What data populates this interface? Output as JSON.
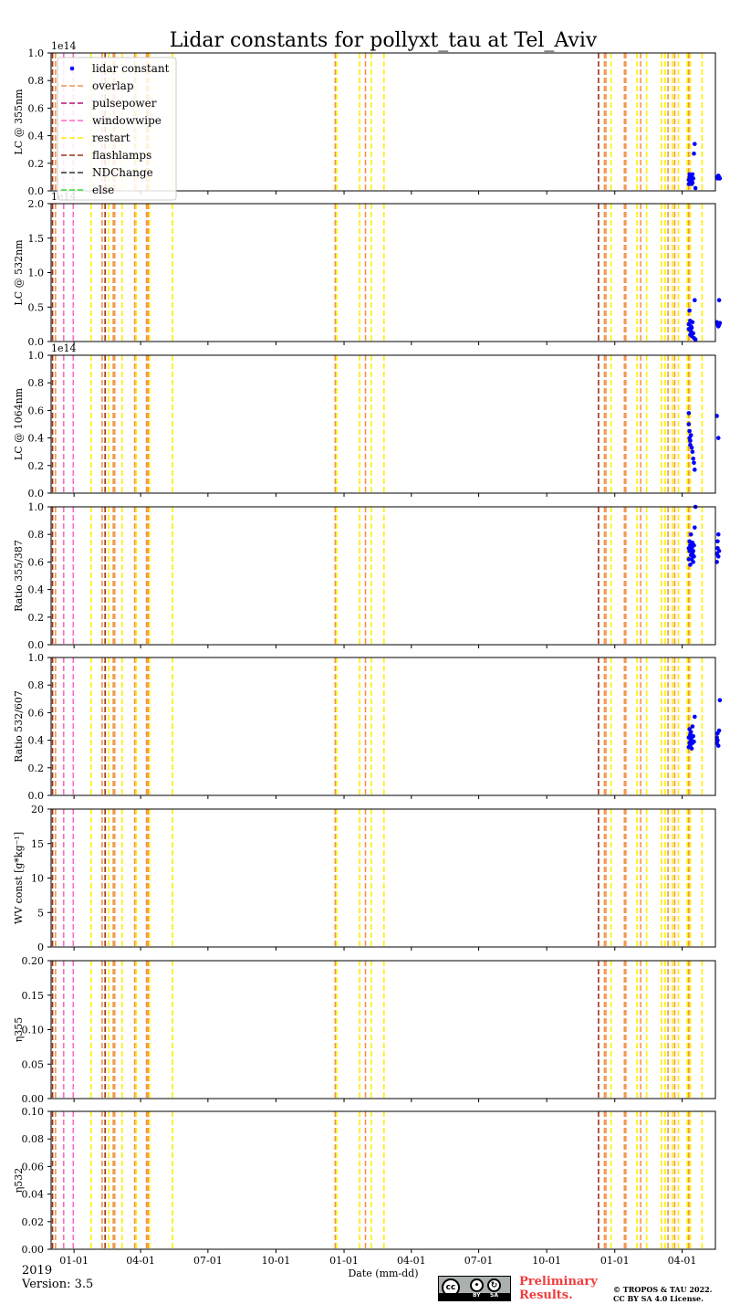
{
  "chart_data": {
    "type": "scatter",
    "title": "Lidar constants for pollyxt_tau at Tel_Aviv",
    "xlabel": "Date (mm-dd)",
    "x_tick_labels": [
      "01-01",
      "04-01",
      "07-01",
      "10-01",
      "01-01",
      "04-01",
      "07-01",
      "10-01",
      "01-01",
      "04-01"
    ],
    "x_tick_days": [
      31,
      121,
      212,
      304,
      396,
      487,
      578,
      670,
      762,
      853
    ],
    "xlim_days": [
      0,
      898
    ],
    "legend": {
      "placement": "upper-left of first panel",
      "entries": [
        {
          "label": "lidar constant",
          "style": "dot",
          "color": "#0000ff"
        },
        {
          "label": "overlap",
          "style": "dash",
          "color": "#f4944c"
        },
        {
          "label": "pulsepower",
          "style": "dash",
          "color": "#b0127a"
        },
        {
          "label": "windowwipe",
          "style": "dash",
          "color": "#ff66cc"
        },
        {
          "label": "restart",
          "style": "dash",
          "color": "#ffee00"
        },
        {
          "label": "flashlamps",
          "style": "dash",
          "color": "#a0341a"
        },
        {
          "label": "NDChange",
          "style": "dash",
          "color": "#333333"
        },
        {
          "label": "else",
          "style": "dash",
          "color": "#33dd33"
        }
      ]
    },
    "events": [
      {
        "type": "flashlamps",
        "day": 2
      },
      {
        "type": "overlap",
        "day": 6
      },
      {
        "type": "windowwipe",
        "day": 17
      },
      {
        "type": "windowwipe",
        "day": 30
      },
      {
        "type": "restart",
        "day": 54
      },
      {
        "type": "overlap",
        "day": 69
      },
      {
        "type": "flashlamps",
        "day": 73
      },
      {
        "type": "restart",
        "day": 78
      },
      {
        "type": "overlap",
        "day": 84
      },
      {
        "type": "overlap",
        "day": 86
      },
      {
        "type": "restart",
        "day": 96
      },
      {
        "type": "overlap",
        "day": 113
      },
      {
        "type": "restart",
        "day": 115
      },
      {
        "type": "overlap",
        "day": 129
      },
      {
        "type": "overlap",
        "day": 131
      },
      {
        "type": "restart",
        "day": 133
      },
      {
        "type": "restart",
        "day": 164
      },
      {
        "type": "overlap",
        "day": 384
      },
      {
        "type": "restart",
        "day": 386
      },
      {
        "type": "restart",
        "day": 417
      },
      {
        "type": "overlap",
        "day": 425
      },
      {
        "type": "restart",
        "day": 433
      },
      {
        "type": "restart",
        "day": 450
      },
      {
        "type": "flashlamps",
        "day": 740
      },
      {
        "type": "overlap",
        "day": 748
      },
      {
        "type": "overlap",
        "day": 750
      },
      {
        "type": "restart",
        "day": 757
      },
      {
        "type": "overlap",
        "day": 775
      },
      {
        "type": "overlap",
        "day": 777
      },
      {
        "type": "restart",
        "day": 792
      },
      {
        "type": "overlap",
        "day": 797
      },
      {
        "type": "restart",
        "day": 805
      },
      {
        "type": "restart",
        "day": 825
      },
      {
        "type": "restart",
        "day": 830
      },
      {
        "type": "overlap",
        "day": 834
      },
      {
        "type": "restart",
        "day": 840
      },
      {
        "type": "overlap",
        "day": 843
      },
      {
        "type": "restart",
        "day": 848
      },
      {
        "type": "restart",
        "day": 860
      },
      {
        "type": "overlap",
        "day": 862
      },
      {
        "type": "restart",
        "day": 864
      },
      {
        "type": "restart",
        "day": 880
      }
    ],
    "panels": [
      {
        "ylabel": "LC @ 355nm",
        "ylim": [
          0,
          1.0
        ],
        "yticks": [
          "0.0",
          "0.2",
          "0.4",
          "0.6",
          "0.8",
          "1.0"
        ],
        "offset_text": "1e14",
        "points": {
          "x": [
            862,
            862,
            863,
            863,
            864,
            864,
            865,
            865,
            866,
            866,
            866,
            867,
            867,
            868,
            869,
            870,
            871,
            900,
            901,
            902,
            903,
            904
          ],
          "y": [
            0.05,
            0.08,
            0.1,
            0.12,
            0.06,
            0.09,
            0.11,
            0.07,
            0.05,
            0.1,
            0.08,
            0.12,
            0.06,
            0.09,
            0.27,
            0.34,
            0.02,
            0.1,
            0.09,
            0.11,
            0.1,
            0.09
          ]
        }
      },
      {
        "ylabel": "LC @ 532nm",
        "ylim": [
          0,
          2.0
        ],
        "yticks": [
          "0.0",
          "0.5",
          "1.0",
          "1.5",
          "2.0"
        ],
        "offset_text": "1e14",
        "points": {
          "x": [
            862,
            862,
            863,
            864,
            864,
            865,
            865,
            866,
            866,
            867,
            868,
            869,
            870,
            871,
            900,
            901,
            902,
            903,
            904,
            903
          ],
          "y": [
            0.18,
            0.25,
            0.45,
            0.1,
            0.3,
            0.22,
            0.15,
            0.2,
            0.08,
            0.28,
            0.12,
            0.05,
            0.6,
            0.03,
            0.28,
            0.25,
            0.22,
            0.24,
            0.27,
            0.6
          ]
        }
      },
      {
        "ylabel": "LC @ 1064nm",
        "ylim": [
          0,
          1.0
        ],
        "yticks": [
          "0.0",
          "0.2",
          "0.4",
          "0.6",
          "0.8",
          "1.0"
        ],
        "offset_text": "1e14",
        "points": {
          "x": [
            862,
            862,
            863,
            863,
            864,
            864,
            865,
            866,
            867,
            868,
            869,
            870,
            900,
            902
          ],
          "y": [
            0.58,
            0.5,
            0.45,
            0.4,
            0.38,
            0.35,
            0.42,
            0.33,
            0.3,
            0.25,
            0.22,
            0.17,
            0.56,
            0.4
          ]
        }
      },
      {
        "ylabel": "Ratio 355/387",
        "ylim": [
          0,
          1.0
        ],
        "yticks": [
          "0.0",
          "0.2",
          "0.4",
          "0.6",
          "0.8",
          "1.0"
        ],
        "offset_text": "",
        "points": {
          "x": [
            862,
            862,
            863,
            863,
            864,
            864,
            865,
            865,
            866,
            866,
            867,
            867,
            868,
            868,
            869,
            869,
            870,
            871,
            900,
            900,
            901,
            901,
            902,
            902,
            903
          ],
          "y": [
            0.62,
            0.7,
            0.75,
            0.68,
            0.58,
            0.72,
            0.65,
            0.8,
            0.62,
            0.7,
            0.66,
            0.74,
            0.6,
            0.68,
            0.72,
            0.64,
            0.85,
            1.0,
            0.6,
            0.66,
            0.7,
            0.75,
            0.8,
            0.64,
            0.68
          ]
        }
      },
      {
        "ylabel": "Ratio 532/607",
        "ylim": [
          0,
          1.0
        ],
        "yticks": [
          "0.0",
          "0.2",
          "0.4",
          "0.6",
          "0.8",
          "1.0"
        ],
        "offset_text": "",
        "points": {
          "x": [
            862,
            862,
            863,
            863,
            864,
            864,
            865,
            865,
            866,
            866,
            867,
            867,
            868,
            869,
            870,
            900,
            900,
            901,
            901,
            902,
            903,
            904
          ],
          "y": [
            0.35,
            0.42,
            0.48,
            0.38,
            0.44,
            0.36,
            0.4,
            0.46,
            0.34,
            0.42,
            0.38,
            0.5,
            0.43,
            0.39,
            0.57,
            0.38,
            0.42,
            0.4,
            0.45,
            0.36,
            0.47,
            0.69
          ]
        }
      },
      {
        "ylabel": "WV const [g*kg⁻¹]",
        "ylim": [
          0,
          20
        ],
        "yticks": [
          "0",
          "5",
          "10",
          "15",
          "20"
        ],
        "offset_text": "",
        "points": {
          "x": [],
          "y": []
        }
      },
      {
        "ylabel": "η355",
        "ylim": [
          0,
          0.2
        ],
        "yticks": [
          "0.00",
          "0.05",
          "0.10",
          "0.15",
          "0.20"
        ],
        "offset_text": "",
        "points": {
          "x": [],
          "y": []
        }
      },
      {
        "ylabel": "η532",
        "ylim": [
          0,
          0.1
        ],
        "yticks": [
          "0.00",
          "0.02",
          "0.04",
          "0.06",
          "0.08",
          "0.10"
        ],
        "offset_text": "",
        "points": {
          "x": [],
          "y": []
        }
      }
    ]
  },
  "footer": {
    "year": "2019",
    "version": "Version: 3.5",
    "preliminary_line1": "Preliminary",
    "preliminary_line2": "Results.",
    "copyright_line1": "© TROPOS & TAU 2022.",
    "copyright_line2": "CC BY SA 4.0 License.",
    "license_badge": {
      "cc": "cc",
      "by": "BY",
      "sa": "SA"
    }
  }
}
